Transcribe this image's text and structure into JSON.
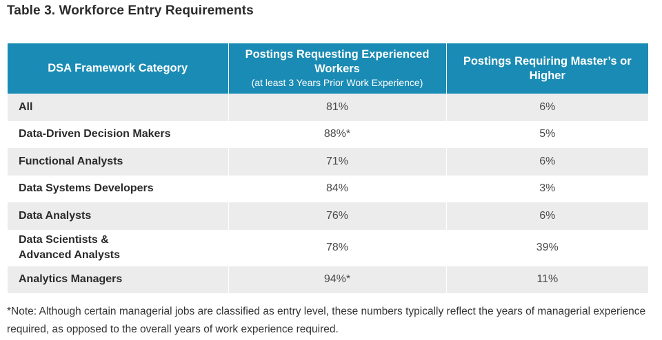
{
  "title": "Table 3. Workforce Entry Requirements",
  "table": {
    "headers": [
      {
        "main": "DSA Framework Category",
        "sub": ""
      },
      {
        "main": "Postings Requesting Experienced Workers",
        "sub": "(at least 3 Years Prior Work Experience)"
      },
      {
        "main": "Postings Requiring Master’s or Higher",
        "sub": ""
      }
    ],
    "rows": [
      {
        "category": "All",
        "experienced": "81%",
        "masters": "6%"
      },
      {
        "category": "Data-Driven Decision Makers",
        "experienced": "88%*",
        "masters": "5%"
      },
      {
        "category": "Functional Analysts",
        "experienced": "71%",
        "masters": "6%"
      },
      {
        "category": "Data Systems Developers",
        "experienced": "84%",
        "masters": "3%"
      },
      {
        "category": "Data Analysts",
        "experienced": "76%",
        "masters": "6%"
      },
      {
        "category": "Data Scientists & Advanced Analysts",
        "experienced": "78%",
        "masters": "39%"
      },
      {
        "category": "Analytics Managers",
        "experienced": "94%*",
        "masters": "11%"
      }
    ],
    "header_color": "#1a8bb4",
    "stripe_color": "#ececec"
  },
  "note": "*Note: Although certain managerial jobs are classified as entry level, these numbers typically reflect the years of mana­gerial experience required, as opposed to the overall years of work experience required."
}
